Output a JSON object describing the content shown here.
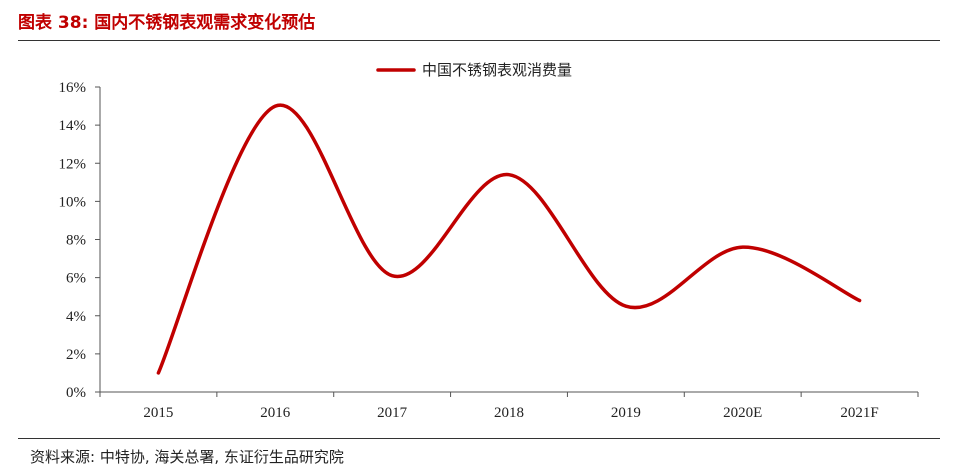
{
  "figure": {
    "title": "图表 38:  国内不锈钢表观需求变化预估",
    "source": "资料来源: 中特协, 海关总署, 东证衍生品研究院"
  },
  "chart_data": {
    "type": "line",
    "categories": [
      "2015",
      "2016",
      "2017",
      "2018",
      "2019",
      "2020E",
      "2021F"
    ],
    "series": [
      {
        "name": "中国不锈钢表观消费量",
        "values": [
          1.0,
          15.0,
          6.1,
          11.4,
          4.5,
          7.6,
          4.8
        ],
        "color": "#c00000"
      }
    ],
    "ylim": [
      0,
      16
    ],
    "ytick_step": 2,
    "ytick_labels": [
      "0%",
      "2%",
      "4%",
      "6%",
      "8%",
      "10%",
      "12%",
      "14%",
      "16%"
    ],
    "legend_position": "top-center",
    "smooth": true,
    "grid": false
  }
}
